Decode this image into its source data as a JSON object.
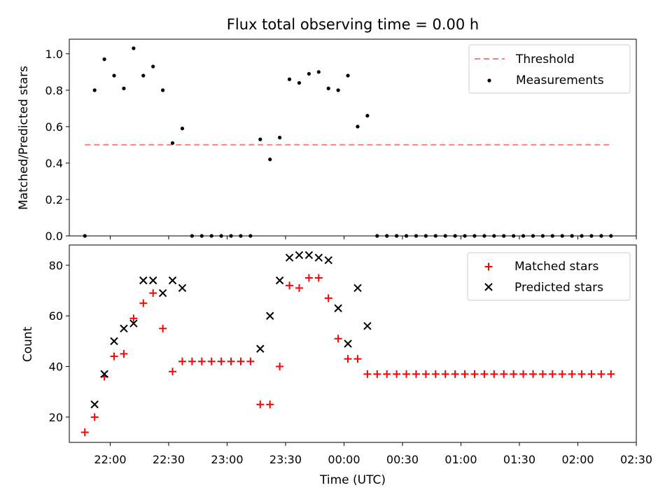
{
  "title": "Flux total observing time = 0.00 h",
  "colors": {
    "threshold": "#ff7f7f",
    "measurement": "#000000",
    "matched": "#ff0000",
    "predicted": "#000000"
  },
  "chart_data": [
    {
      "type": "scatter",
      "ylabel": "Matched/Predicted stars",
      "xlabel": "",
      "ylim": [
        0,
        1.08
      ],
      "yticks": [
        "0.0",
        "0.2",
        "0.4",
        "0.6",
        "0.8",
        "1.0"
      ],
      "legend_position": "top-right",
      "threshold": {
        "name": "Threshold",
        "y": 0.5,
        "x_start": "21:47",
        "x_end": "02:18"
      },
      "series": [
        {
          "name": "Measurements",
          "x": [
            "21:47",
            "21:52",
            "21:57",
            "22:02",
            "22:07",
            "22:12",
            "22:17",
            "22:22",
            "22:27",
            "22:32",
            "22:37",
            "22:42",
            "22:47",
            "22:52",
            "22:57",
            "23:02",
            "23:07",
            "23:12",
            "23:17",
            "23:22",
            "23:27",
            "23:32",
            "23:37",
            "23:42",
            "23:47",
            "23:52",
            "23:57",
            "00:02",
            "00:07",
            "00:12",
            "00:17",
            "00:22",
            "00:27",
            "00:32",
            "00:37",
            "00:42",
            "00:47",
            "00:52",
            "00:57",
            "01:02",
            "01:07",
            "01:12",
            "01:17",
            "01:22",
            "01:27",
            "01:32",
            "01:37",
            "01:42",
            "01:47",
            "01:52",
            "01:57",
            "02:02",
            "02:07",
            "02:12",
            "02:17"
          ],
          "y": [
            0.0,
            0.8,
            0.97,
            0.88,
            0.81,
            1.03,
            0.88,
            0.93,
            0.8,
            0.51,
            0.59,
            0.0,
            0.0,
            0.0,
            0.0,
            0.0,
            0.0,
            0.0,
            0.53,
            0.42,
            0.54,
            0.86,
            0.84,
            0.89,
            0.9,
            0.81,
            0.8,
            0.88,
            0.6,
            0.66,
            0.0,
            0.0,
            0.0,
            0.0,
            0.0,
            0.0,
            0.0,
            0.0,
            0.0,
            0.0,
            0.0,
            0.0,
            0.0,
            0.0,
            0.0,
            0.0,
            0.0,
            0.0,
            0.0,
            0.0,
            0.0,
            0.0,
            0.0,
            0.0,
            0.0
          ]
        }
      ]
    },
    {
      "type": "scatter",
      "ylabel": "Count",
      "xlabel": "Time (UTC)",
      "ylim": [
        10,
        88
      ],
      "yticks": [
        "20",
        "40",
        "60",
        "80"
      ],
      "xlim": [
        "21:39",
        "02:30"
      ],
      "xticks": [
        "22:00",
        "22:30",
        "23:00",
        "23:30",
        "00:00",
        "00:30",
        "01:00",
        "01:30",
        "02:00",
        "02:30"
      ],
      "legend_position": "top-right",
      "series": [
        {
          "name": "Matched stars",
          "marker": "+",
          "x": [
            "21:47",
            "21:52",
            "21:57",
            "22:02",
            "22:07",
            "22:12",
            "22:17",
            "22:22",
            "22:27",
            "22:32",
            "22:37",
            "22:42",
            "22:47",
            "22:52",
            "22:57",
            "23:02",
            "23:07",
            "23:12",
            "23:17",
            "23:22",
            "23:27",
            "23:32",
            "23:37",
            "23:42",
            "23:47",
            "23:52",
            "23:57",
            "00:02",
            "00:07",
            "00:12",
            "00:17",
            "00:22",
            "00:27",
            "00:32",
            "00:37",
            "00:42",
            "00:47",
            "00:52",
            "00:57",
            "01:02",
            "01:07",
            "01:12",
            "01:17",
            "01:22",
            "01:27",
            "01:32",
            "01:37",
            "01:42",
            "01:47",
            "01:52",
            "01:57",
            "02:02",
            "02:07",
            "02:12",
            "02:17"
          ],
          "y": [
            14,
            20,
            36,
            44,
            45,
            59,
            65,
            69,
            55,
            38,
            42,
            42,
            42,
            42,
            42,
            42,
            42,
            42,
            25,
            25,
            40,
            72,
            71,
            75,
            75,
            67,
            51,
            43,
            43,
            37,
            37,
            37,
            37,
            37,
            37,
            37,
            37,
            37,
            37,
            37,
            37,
            37,
            37,
            37,
            37,
            37,
            37,
            37,
            37,
            37,
            37,
            37,
            37,
            37,
            37
          ]
        },
        {
          "name": "Predicted stars",
          "marker": "x",
          "x": [
            "21:52",
            "21:57",
            "22:02",
            "22:07",
            "22:12",
            "22:17",
            "22:22",
            "22:27",
            "22:32",
            "22:37",
            "23:17",
            "23:22",
            "23:27",
            "23:32",
            "23:37",
            "23:42",
            "23:47",
            "23:52",
            "23:57",
            "00:02",
            "00:07",
            "00:12"
          ],
          "y": [
            25,
            37,
            50,
            55,
            57,
            74,
            74,
            69,
            74,
            71,
            47,
            60,
            74,
            83,
            84,
            84,
            83,
            82,
            63,
            49,
            71,
            56
          ]
        }
      ]
    }
  ]
}
